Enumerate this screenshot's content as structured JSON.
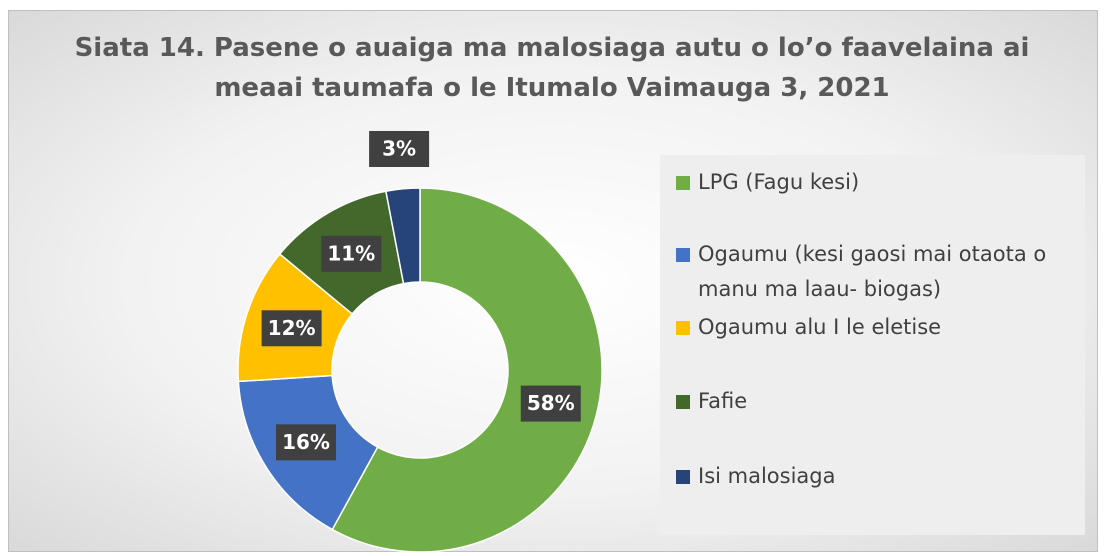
{
  "chart_data": {
    "type": "donut",
    "title": "Siata 14. Pasene o auaiga ma malosiaga autu o lo’o faavelaina ai meaai taumafa o le Itumalo Vaimauga 3, 2021",
    "categories": [
      "LPG (Fagu kesi)",
      "Ogaumu (kesi gaosi mai otaota o manu ma laau- biogas)",
      "Ogaumu alu I le eletise",
      "Fafie",
      "Isi malosiaga"
    ],
    "values": [
      58,
      16,
      12,
      11,
      3
    ],
    "value_labels": [
      "58%",
      "16%",
      "12%",
      "11%",
      "3%"
    ],
    "colors": [
      "#70ad47",
      "#4472c4",
      "#ffc000",
      "#43682b",
      "#264478"
    ],
    "legend": "right"
  }
}
